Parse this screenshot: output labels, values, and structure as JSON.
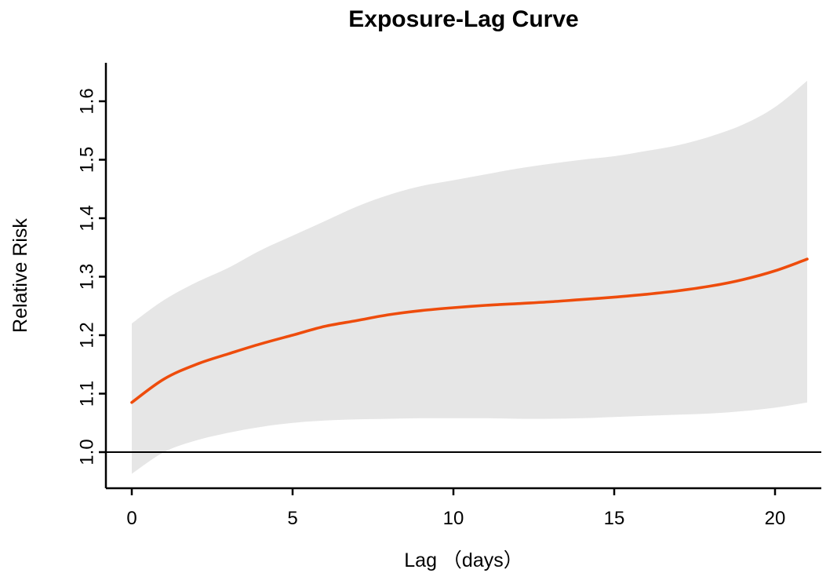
{
  "page": {
    "background_color": "#ffffff"
  },
  "chart_data": {
    "type": "line",
    "title": "Exposure-Lag Curve",
    "xlabel": "Lag （days）",
    "ylabel": "Relative Risk",
    "x": [
      0,
      1,
      2,
      3,
      4,
      5,
      6,
      7,
      8,
      9,
      10,
      11,
      12,
      13,
      14,
      15,
      16,
      17,
      18,
      19,
      20,
      21
    ],
    "series": [
      {
        "name": "relative-risk-curve",
        "values": [
          1.085,
          1.125,
          1.15,
          1.168,
          1.185,
          1.2,
          1.215,
          1.225,
          1.235,
          1.242,
          1.247,
          1.251,
          1.254,
          1.257,
          1.261,
          1.265,
          1.27,
          1.276,
          1.284,
          1.295,
          1.31,
          1.33
        ],
        "color": "#EE4C0C"
      }
    ],
    "band": {
      "name": "confidence-band",
      "upper": [
        1.22,
        1.26,
        1.29,
        1.315,
        1.345,
        1.37,
        1.395,
        1.42,
        1.44,
        1.455,
        1.465,
        1.475,
        1.485,
        1.493,
        1.5,
        1.506,
        1.515,
        1.525,
        1.54,
        1.56,
        1.59,
        1.635
      ],
      "lower": [
        0.963,
        1.0,
        1.02,
        1.033,
        1.043,
        1.05,
        1.054,
        1.056,
        1.057,
        1.058,
        1.058,
        1.058,
        1.057,
        1.057,
        1.058,
        1.06,
        1.062,
        1.064,
        1.066,
        1.07,
        1.076,
        1.085
      ],
      "color": "#E6E6E6"
    },
    "reference_line_y": 1.0,
    "x_ticks": [
      0,
      5,
      10,
      15,
      20
    ],
    "y_ticks": [
      "1.0",
      "1.1",
      "1.2",
      "1.3",
      "1.4",
      "1.5",
      "1.6"
    ],
    "xlim": [
      -0.8,
      21.4
    ],
    "ylim": [
      0.938,
      1.667
    ],
    "grid": false,
    "legend": "none",
    "axis_color": "#000000"
  }
}
